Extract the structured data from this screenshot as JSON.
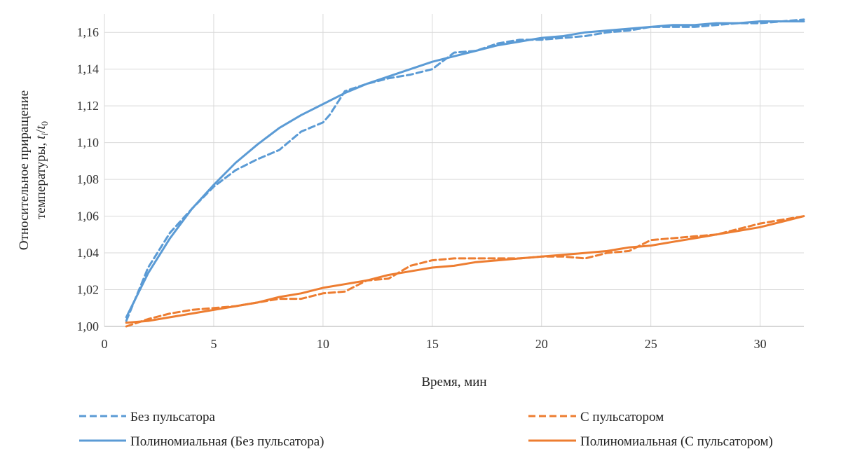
{
  "chart_data": {
    "type": "line",
    "xlabel": "Время, мин",
    "ylabel_line1": "Относительное приращение",
    "ylabel_line2_prefix": "температуры, ",
    "ylabel_formula": {
      "t": "t",
      "i": "i",
      "sep": "/",
      "t0": "t",
      "zero": "0"
    },
    "xlim": [
      0,
      32
    ],
    "ylim": [
      1.0,
      1.17
    ],
    "x_ticks": [
      0,
      5,
      10,
      15,
      20,
      25,
      30
    ],
    "y_ticks": [
      1.0,
      1.02,
      1.04,
      1.06,
      1.08,
      1.1,
      1.12,
      1.14,
      1.16
    ],
    "x_tick_labels": [
      "0",
      "5",
      "10",
      "15",
      "20",
      "25",
      "30"
    ],
    "y_tick_labels": [
      "1,00",
      "1,02",
      "1,04",
      "1,06",
      "1,08",
      "1,10",
      "1,12",
      "1,14",
      "1,16"
    ],
    "grid": true,
    "legend_position": "bottom",
    "series": [
      {
        "name": "Без пульсатора",
        "color": "#5B9BD5",
        "style": "dashed",
        "x": [
          1,
          2,
          3,
          4,
          5,
          6,
          7,
          8,
          9,
          10,
          10.3,
          11,
          12,
          13,
          14,
          15,
          16,
          17,
          18,
          19,
          20,
          21,
          22,
          23,
          24,
          25,
          26,
          27,
          28,
          29,
          30,
          31,
          32
        ],
        "values": [
          1.003,
          1.032,
          1.051,
          1.064,
          1.076,
          1.085,
          1.091,
          1.096,
          1.106,
          1.111,
          1.115,
          1.128,
          1.132,
          1.135,
          1.137,
          1.14,
          1.149,
          1.15,
          1.154,
          1.156,
          1.156,
          1.157,
          1.158,
          1.16,
          1.161,
          1.163,
          1.163,
          1.163,
          1.164,
          1.165,
          1.165,
          1.166,
          1.167
        ]
      },
      {
        "name": "С пульсатором",
        "color": "#ED7D31",
        "style": "dashed",
        "x": [
          1,
          2,
          3,
          4,
          5,
          6,
          7,
          8,
          9,
          10,
          11,
          12,
          13,
          14,
          15,
          16,
          17,
          18,
          19,
          20,
          21,
          22,
          23,
          24,
          25,
          26,
          27,
          28,
          29,
          30,
          31,
          32
        ],
        "values": [
          1.0,
          1.004,
          1.007,
          1.009,
          1.01,
          1.011,
          1.013,
          1.015,
          1.015,
          1.018,
          1.019,
          1.025,
          1.026,
          1.033,
          1.036,
          1.037,
          1.037,
          1.037,
          1.037,
          1.038,
          1.038,
          1.037,
          1.04,
          1.041,
          1.047,
          1.048,
          1.049,
          1.05,
          1.053,
          1.056,
          1.058,
          1.06
        ]
      },
      {
        "name": "Полиномиальная (Без пульсатора)",
        "color": "#5B9BD5",
        "style": "solid",
        "x": [
          1,
          2,
          3,
          4,
          5,
          6,
          7,
          8,
          9,
          10,
          11,
          12,
          13,
          14,
          15,
          16,
          17,
          18,
          19,
          20,
          21,
          22,
          23,
          24,
          25,
          26,
          27,
          28,
          29,
          30,
          31,
          32
        ],
        "values": [
          1.005,
          1.029,
          1.048,
          1.064,
          1.077,
          1.089,
          1.099,
          1.108,
          1.115,
          1.121,
          1.127,
          1.132,
          1.136,
          1.14,
          1.144,
          1.147,
          1.15,
          1.153,
          1.155,
          1.157,
          1.158,
          1.16,
          1.161,
          1.162,
          1.163,
          1.164,
          1.164,
          1.165,
          1.165,
          1.166,
          1.166,
          1.166
        ]
      },
      {
        "name": "Полиномиальная (С пульсатором)",
        "color": "#ED7D31",
        "style": "solid",
        "x": [
          1,
          2,
          3,
          4,
          5,
          6,
          7,
          8,
          9,
          10,
          11,
          12,
          13,
          14,
          15,
          16,
          17,
          18,
          19,
          20,
          21,
          22,
          23,
          24,
          25,
          26,
          27,
          28,
          29,
          30,
          31,
          32
        ],
        "values": [
          1.002,
          1.003,
          1.005,
          1.007,
          1.009,
          1.011,
          1.013,
          1.016,
          1.018,
          1.021,
          1.023,
          1.025,
          1.028,
          1.03,
          1.032,
          1.033,
          1.035,
          1.036,
          1.037,
          1.038,
          1.039,
          1.04,
          1.041,
          1.043,
          1.044,
          1.046,
          1.048,
          1.05,
          1.052,
          1.054,
          1.057,
          1.06
        ]
      }
    ]
  }
}
